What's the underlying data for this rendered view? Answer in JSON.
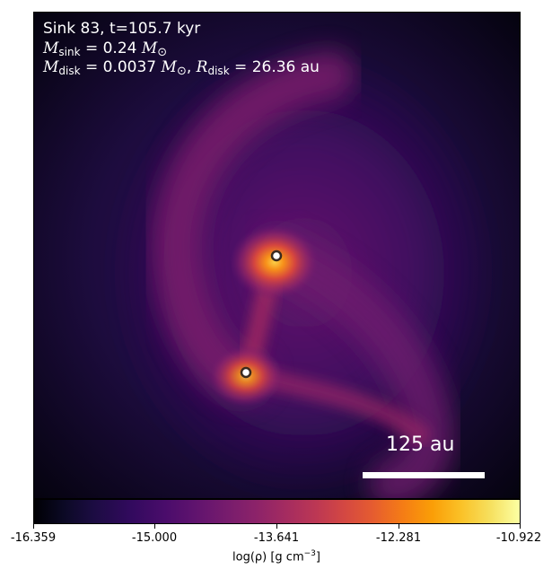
{
  "annotation": {
    "line1": "Sink 83, t=105.7 kyr",
    "msink_symbol": "M",
    "msink_sub": "sink",
    "msink_value": " = 0.24 ",
    "mdisk_symbol": "M",
    "mdisk_sub": "disk",
    "mdisk_value": " = 0.0037 ",
    "rdisk_symbol": "R",
    "rdisk_sub": "disk",
    "rdisk_value": " = 26.36 au",
    "solar_mass_symbol": "M",
    "solar_sub": "⊙"
  },
  "scalebar": {
    "label": "125 au"
  },
  "colorbar": {
    "ticks": [
      "-16.359",
      "-15.000",
      "-13.641",
      "-12.281",
      "-10.922"
    ],
    "label_prefix": "log(ρ) [g cm",
    "label_exp": "−3",
    "label_suffix": "]",
    "colormap": "inferno"
  },
  "colors": {
    "sink_edge": "#3b2a1e",
    "sink_fill": "#ffffff",
    "text": "#ffffff"
  }
}
